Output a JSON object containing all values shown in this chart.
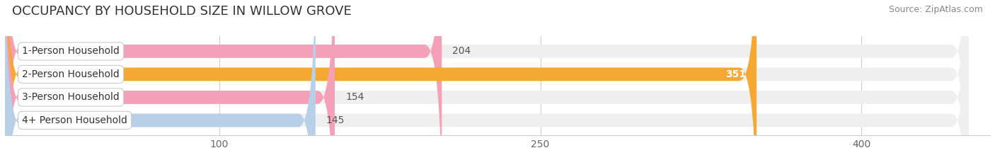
{
  "title": "OCCUPANCY BY HOUSEHOLD SIZE IN WILLOW GROVE",
  "source": "Source: ZipAtlas.com",
  "categories": [
    "1-Person Household",
    "2-Person Household",
    "3-Person Household",
    "4+ Person Household"
  ],
  "values": [
    204,
    351,
    154,
    145
  ],
  "bar_colors": [
    "#f4a0b8",
    "#f5a832",
    "#f4a0b8",
    "#b8cfe8"
  ],
  "bar_bg_color": "#efefef",
  "label_inside": [
    false,
    true,
    false,
    false
  ],
  "xlim": [
    0,
    460
  ],
  "xticks": [
    100,
    250,
    400
  ],
  "title_fontsize": 13,
  "source_fontsize": 9,
  "bar_label_fontsize": 10,
  "category_fontsize": 10,
  "tick_fontsize": 10,
  "bg_color": "#ffffff",
  "bar_bg_full": 450,
  "pill_bg": "#ffffff",
  "pill_edge": "#dddddd"
}
